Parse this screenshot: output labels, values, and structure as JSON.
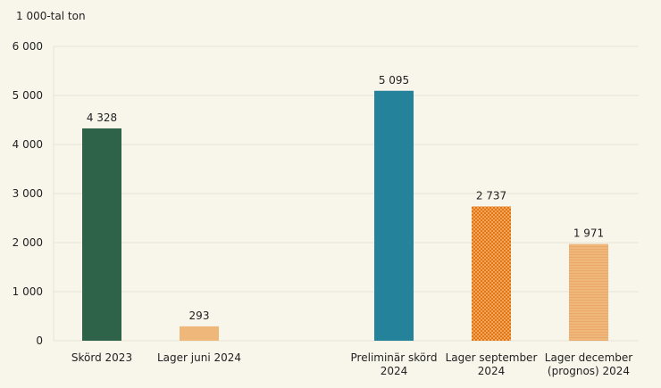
{
  "chart_data": {
    "type": "bar",
    "ylabel": "1 000-tal ton",
    "ylim": [
      0,
      6000
    ],
    "yticks": [
      0,
      1000,
      2000,
      3000,
      4000,
      5000,
      6000
    ],
    "ytick_labels": [
      "0",
      "1 000",
      "2 000",
      "3 000",
      "4 000",
      "5 000",
      "6 000"
    ],
    "grid": true,
    "categories": [
      [
        "Skörd 2023"
      ],
      [
        "Lager juni 2024"
      ],
      [
        "Preliminär skörd",
        "2024"
      ],
      [
        "Lager september",
        "2024"
      ],
      [
        "Lager december",
        "(prognos) 2024"
      ]
    ],
    "values": [
      4328,
      293,
      5095,
      2737,
      1971
    ],
    "data_labels": [
      "4 328",
      "293",
      "5 095",
      "2 737",
      "1 971"
    ],
    "colors": [
      "#2e6349",
      "#f0b77a",
      "#24829b",
      "#e8801a",
      "#f0b77a"
    ],
    "patterns": [
      "solid",
      "solid",
      "solid",
      "checkered",
      "striped"
    ]
  }
}
